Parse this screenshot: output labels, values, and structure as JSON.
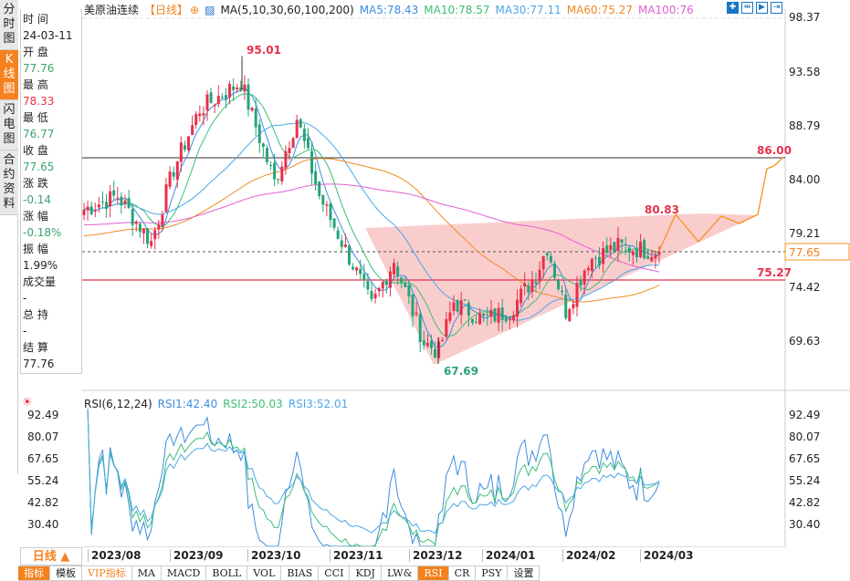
{
  "left_tabs": [
    "分时图",
    "K线图",
    "闪电图",
    "合约资料"
  ],
  "info": {
    "time_label": "时 间",
    "time": "24-03-11",
    "open_label": "开 盘",
    "open": "77.76",
    "high_label": "最 高",
    "high": "78.33",
    "low_label": "最 低",
    "low": "76.77",
    "close_label": "收 盘",
    "close": "77.65",
    "change_label": "涨 跌",
    "change": "-0.14",
    "pct_label": "涨 幅",
    "pct": "-0.18%",
    "amp_label": "振 幅",
    "amp": "1.99%",
    "vol_label": "成交量",
    "vol": "-",
    "oi_label": "总 持",
    "oi": "-",
    "settle_label": "结 算",
    "settle": "77.76"
  },
  "header": {
    "name": "美原油连续",
    "period": "【日线】",
    "ma_label": "MA(5,10,30,60,100,200)",
    "ma5": "MA5:78.43",
    "ma10": "MA10:78.57",
    "ma30": "MA30:77.11",
    "ma60": "MA60:75.27",
    "ma100": "MA100:76"
  },
  "price_axis": [
    "98.37",
    "93.58",
    "88.79",
    "84.00",
    "79.21",
    "74.42",
    "69.63"
  ],
  "annotations": {
    "high": "95.01",
    "low": "67.69",
    "recent_high": "80.83",
    "target": "86.00",
    "support": "75.27",
    "last": "77.65"
  },
  "rsi": {
    "label": "RSI(6,12,24)",
    "rsi1": "RSI1:42.40",
    "rsi2": "RSI2:50.03",
    "rsi3": "RSI3:52.01",
    "axis": [
      "92.49",
      "80.07",
      "67.65",
      "55.24",
      "42.82",
      "30.40"
    ]
  },
  "time_axis": [
    "2023/08",
    "2023/09",
    "2023/10",
    "2023/11",
    "2023/12",
    "2024/01",
    "2024/02",
    "2024/03"
  ],
  "period_button": "日线 ▲",
  "bottom_tabs": [
    "指标",
    "模板",
    "VIP指标",
    "MA",
    "MACD",
    "BOLL",
    "VOL",
    "BIAS",
    "CCI",
    "KDJ",
    "LW&",
    "RSI",
    "CR",
    "PSY",
    "设置"
  ],
  "colors": {
    "up": "#e8304a",
    "down": "#27a37a",
    "ma5": "#3c8de0",
    "ma10": "#3cbf74",
    "ma30": "#4aa8e8",
    "ma60": "#f08a24",
    "ma100": "#e060d0",
    "pattern": "#f9c4c4"
  },
  "chart_data": {
    "type": "candlestick",
    "keypoints_index": [
      0,
      9,
      18,
      24,
      31,
      42,
      51,
      57,
      63,
      72,
      77,
      83,
      91,
      95,
      99,
      107,
      114,
      121,
      124,
      129,
      135,
      143,
      154
    ],
    "keypoints_close": [
      81.4,
      82.6,
      78.5,
      85,
      90.3,
      92.7,
      83.8,
      89.5,
      82.6,
      76.5,
      72.8,
      76.9,
      69.6,
      68.8,
      73.2,
      71.6,
      72.4,
      75.6,
      78.1,
      72.4,
      76.9,
      78.1,
      77.65
    ],
    "ylim": [
      69.63,
      98.37
    ]
  }
}
